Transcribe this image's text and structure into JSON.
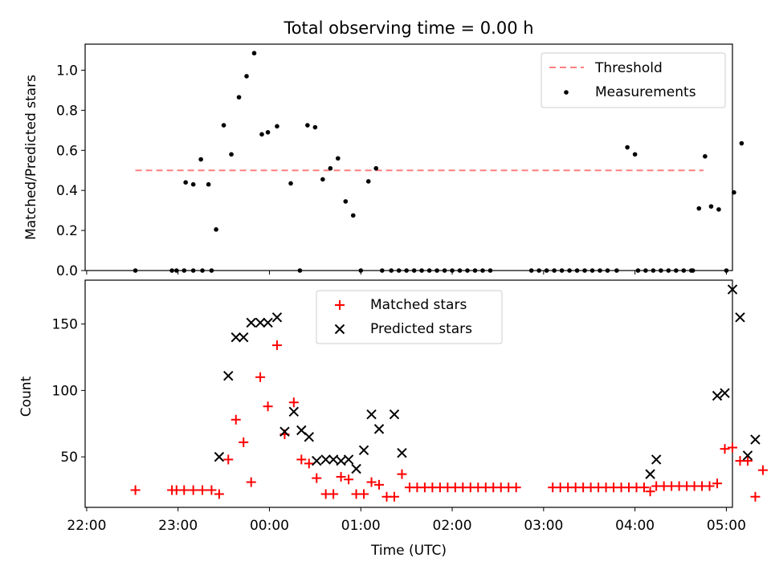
{
  "title": "Total observing time = 0.00 h",
  "chart_data": [
    {
      "type": "scatter",
      "ylabel": "Matched/Predicted stars",
      "xlim": [
        "21:59",
        "05:04"
      ],
      "ylim": [
        0,
        1.13
      ],
      "yticks": [
        "0.0",
        "0.2",
        "0.4",
        "0.6",
        "0.8",
        "1.0"
      ],
      "grid": false,
      "legend": "top-right",
      "threshold": {
        "name": "Threshold",
        "value": 0.5,
        "x_start": "22:32",
        "x_end": "04:45",
        "color": "#ff7f7f",
        "style": "dashed"
      },
      "series": [
        {
          "name": "Measurements",
          "color": "#000000",
          "points": [
            [
              "22:32",
              0
            ],
            [
              "22:56",
              0
            ],
            [
              "22:59",
              0
            ],
            [
              "23:04",
              0
            ],
            [
              "23:10",
              0
            ],
            [
              "23:16",
              0
            ],
            [
              "23:22",
              0
            ],
            [
              "23:05",
              0.44
            ],
            [
              "23:10",
              0.43
            ],
            [
              "23:15",
              0.555
            ],
            [
              "23:20",
              0.43
            ],
            [
              "23:25",
              0.205
            ],
            [
              "23:30",
              0.725
            ],
            [
              "23:35",
              0.58
            ],
            [
              "23:40",
              0.865
            ],
            [
              "23:45",
              0.97
            ],
            [
              "23:50",
              1.085
            ],
            [
              "23:55",
              0.68
            ],
            [
              "23:59",
              0.69
            ],
            [
              "00:05",
              0.72
            ],
            [
              "00:14",
              0.435
            ],
            [
              "00:20",
              0
            ],
            [
              "00:25",
              0.725
            ],
            [
              "00:30",
              0.715
            ],
            [
              "00:35",
              0.455
            ],
            [
              "00:40",
              0.51
            ],
            [
              "00:45",
              0.56
            ],
            [
              "00:50",
              0.345
            ],
            [
              "00:55",
              0.275
            ],
            [
              "01:00",
              0
            ],
            [
              "01:05",
              0.445
            ],
            [
              "01:10",
              0.51
            ],
            [
              "01:14",
              0
            ],
            [
              "01:20",
              0
            ],
            [
              "01:25",
              0
            ],
            [
              "01:30",
              0
            ],
            [
              "01:35",
              0
            ],
            [
              "01:40",
              0
            ],
            [
              "01:45",
              0
            ],
            [
              "01:50",
              0
            ],
            [
              "01:55",
              0
            ],
            [
              "02:00",
              0
            ],
            [
              "02:05",
              0
            ],
            [
              "02:10",
              0
            ],
            [
              "02:15",
              0
            ],
            [
              "02:20",
              0
            ],
            [
              "02:25",
              0
            ],
            [
              "02:52",
              0
            ],
            [
              "02:57",
              0
            ],
            [
              "03:02",
              0
            ],
            [
              "03:07",
              0
            ],
            [
              "03:12",
              0
            ],
            [
              "03:17",
              0
            ],
            [
              "03:22",
              0
            ],
            [
              "03:27",
              0
            ],
            [
              "03:32",
              0
            ],
            [
              "03:37",
              0
            ],
            [
              "03:42",
              0
            ],
            [
              "03:48",
              0
            ],
            [
              "03:55",
              0.615
            ],
            [
              "04:00",
              0.58
            ],
            [
              "04:02",
              0
            ],
            [
              "04:07",
              0
            ],
            [
              "04:12",
              0
            ],
            [
              "04:17",
              0
            ],
            [
              "04:22",
              0
            ],
            [
              "04:27",
              0
            ],
            [
              "04:32",
              0
            ],
            [
              "04:37",
              0
            ],
            [
              "04:38",
              0
            ],
            [
              "04:42",
              0.31
            ],
            [
              "04:46",
              0.57
            ],
            [
              "04:50",
              0.32
            ],
            [
              "04:55",
              0.305
            ],
            [
              "05:00",
              0
            ],
            [
              "05:05",
              0.39
            ],
            [
              "05:10",
              0.635
            ]
          ]
        }
      ]
    },
    {
      "type": "scatter",
      "xlabel": "Time (UTC)",
      "ylabel": "Count",
      "xticks": [
        "22:00",
        "23:00",
        "00:00",
        "01:00",
        "02:00",
        "03:00",
        "04:00",
        "05:00"
      ],
      "yticks": [
        "50",
        "100",
        "150"
      ],
      "ylim": [
        12,
        183
      ],
      "grid": false,
      "legend": "top-center",
      "series": [
        {
          "name": "Matched stars",
          "marker": "+",
          "color": "#ff0000",
          "points": [
            [
              "22:32",
              25
            ],
            [
              "22:56",
              25
            ],
            [
              "22:59",
              25
            ],
            [
              "23:04",
              25
            ],
            [
              "23:10",
              25
            ],
            [
              "23:16",
              25
            ],
            [
              "23:22",
              25
            ],
            [
              "23:27",
              22
            ],
            [
              "23:33",
              48
            ],
            [
              "23:38",
              78
            ],
            [
              "23:43",
              61
            ],
            [
              "23:48",
              31
            ],
            [
              "23:54",
              110
            ],
            [
              "23:59",
              88
            ],
            [
              "00:05",
              134
            ],
            [
              "00:10",
              67
            ],
            [
              "00:16",
              91
            ],
            [
              "00:21",
              48
            ],
            [
              "00:26",
              45
            ],
            [
              "00:31",
              34
            ],
            [
              "00:37",
              22
            ],
            [
              "00:42",
              22
            ],
            [
              "00:47",
              35
            ],
            [
              "00:52",
              33
            ],
            [
              "00:57",
              22
            ],
            [
              "01:02",
              22
            ],
            [
              "01:07",
              31
            ],
            [
              "01:12",
              29
            ],
            [
              "01:17",
              20
            ],
            [
              "01:22",
              20
            ],
            [
              "01:27",
              37
            ],
            [
              "01:32",
              27
            ],
            [
              "01:37",
              27
            ],
            [
              "01:42",
              27
            ],
            [
              "01:47",
              27
            ],
            [
              "01:52",
              27
            ],
            [
              "01:57",
              27
            ],
            [
              "02:02",
              27
            ],
            [
              "02:07",
              27
            ],
            [
              "02:12",
              27
            ],
            [
              "02:17",
              27
            ],
            [
              "02:22",
              27
            ],
            [
              "02:27",
              27
            ],
            [
              "02:32",
              27
            ],
            [
              "02:37",
              27
            ],
            [
              "02:42",
              27
            ],
            [
              "03:06",
              27
            ],
            [
              "03:11",
              27
            ],
            [
              "03:16",
              27
            ],
            [
              "03:21",
              27
            ],
            [
              "03:26",
              27
            ],
            [
              "03:31",
              27
            ],
            [
              "03:36",
              27
            ],
            [
              "03:41",
              27
            ],
            [
              "03:46",
              27
            ],
            [
              "03:51",
              27
            ],
            [
              "03:56",
              27
            ],
            [
              "04:01",
              27
            ],
            [
              "04:06",
              27
            ],
            [
              "04:10",
              24
            ],
            [
              "04:14",
              28
            ],
            [
              "04:19",
              28
            ],
            [
              "04:24",
              28
            ],
            [
              "04:29",
              28
            ],
            [
              "04:34",
              28
            ],
            [
              "04:39",
              28
            ],
            [
              "04:44",
              28
            ],
            [
              "04:49",
              28
            ],
            [
              "04:54",
              30
            ],
            [
              "04:59",
              56
            ],
            [
              "05:04",
              57
            ],
            [
              "05:09",
              47
            ],
            [
              "05:14",
              47
            ],
            [
              "05:19",
              20
            ],
            [
              "05:24",
              40
            ]
          ]
        },
        {
          "name": "Predicted stars",
          "marker": "x",
          "color": "#000000",
          "points": [
            [
              "23:27",
              50
            ],
            [
              "23:33",
              111
            ],
            [
              "23:38",
              140
            ],
            [
              "23:43",
              140
            ],
            [
              "23:48",
              151
            ],
            [
              "23:54",
              151
            ],
            [
              "23:59",
              151
            ],
            [
              "00:05",
              155
            ],
            [
              "00:10",
              69
            ],
            [
              "00:16",
              84
            ],
            [
              "00:21",
              70
            ],
            [
              "00:26",
              65
            ],
            [
              "00:31",
              47
            ],
            [
              "00:37",
              48
            ],
            [
              "00:42",
              48
            ],
            [
              "00:47",
              47
            ],
            [
              "00:52",
              48
            ],
            [
              "00:57",
              41
            ],
            [
              "01:02",
              55
            ],
            [
              "01:07",
              82
            ],
            [
              "01:12",
              71
            ],
            [
              "01:22",
              82
            ],
            [
              "01:27",
              53
            ],
            [
              "04:10",
              37
            ],
            [
              "04:14",
              48
            ],
            [
              "04:54",
              96
            ],
            [
              "04:59",
              98
            ],
            [
              "05:04",
              176
            ],
            [
              "05:09",
              155
            ],
            [
              "05:14",
              51
            ],
            [
              "05:19",
              63
            ]
          ]
        }
      ]
    }
  ]
}
